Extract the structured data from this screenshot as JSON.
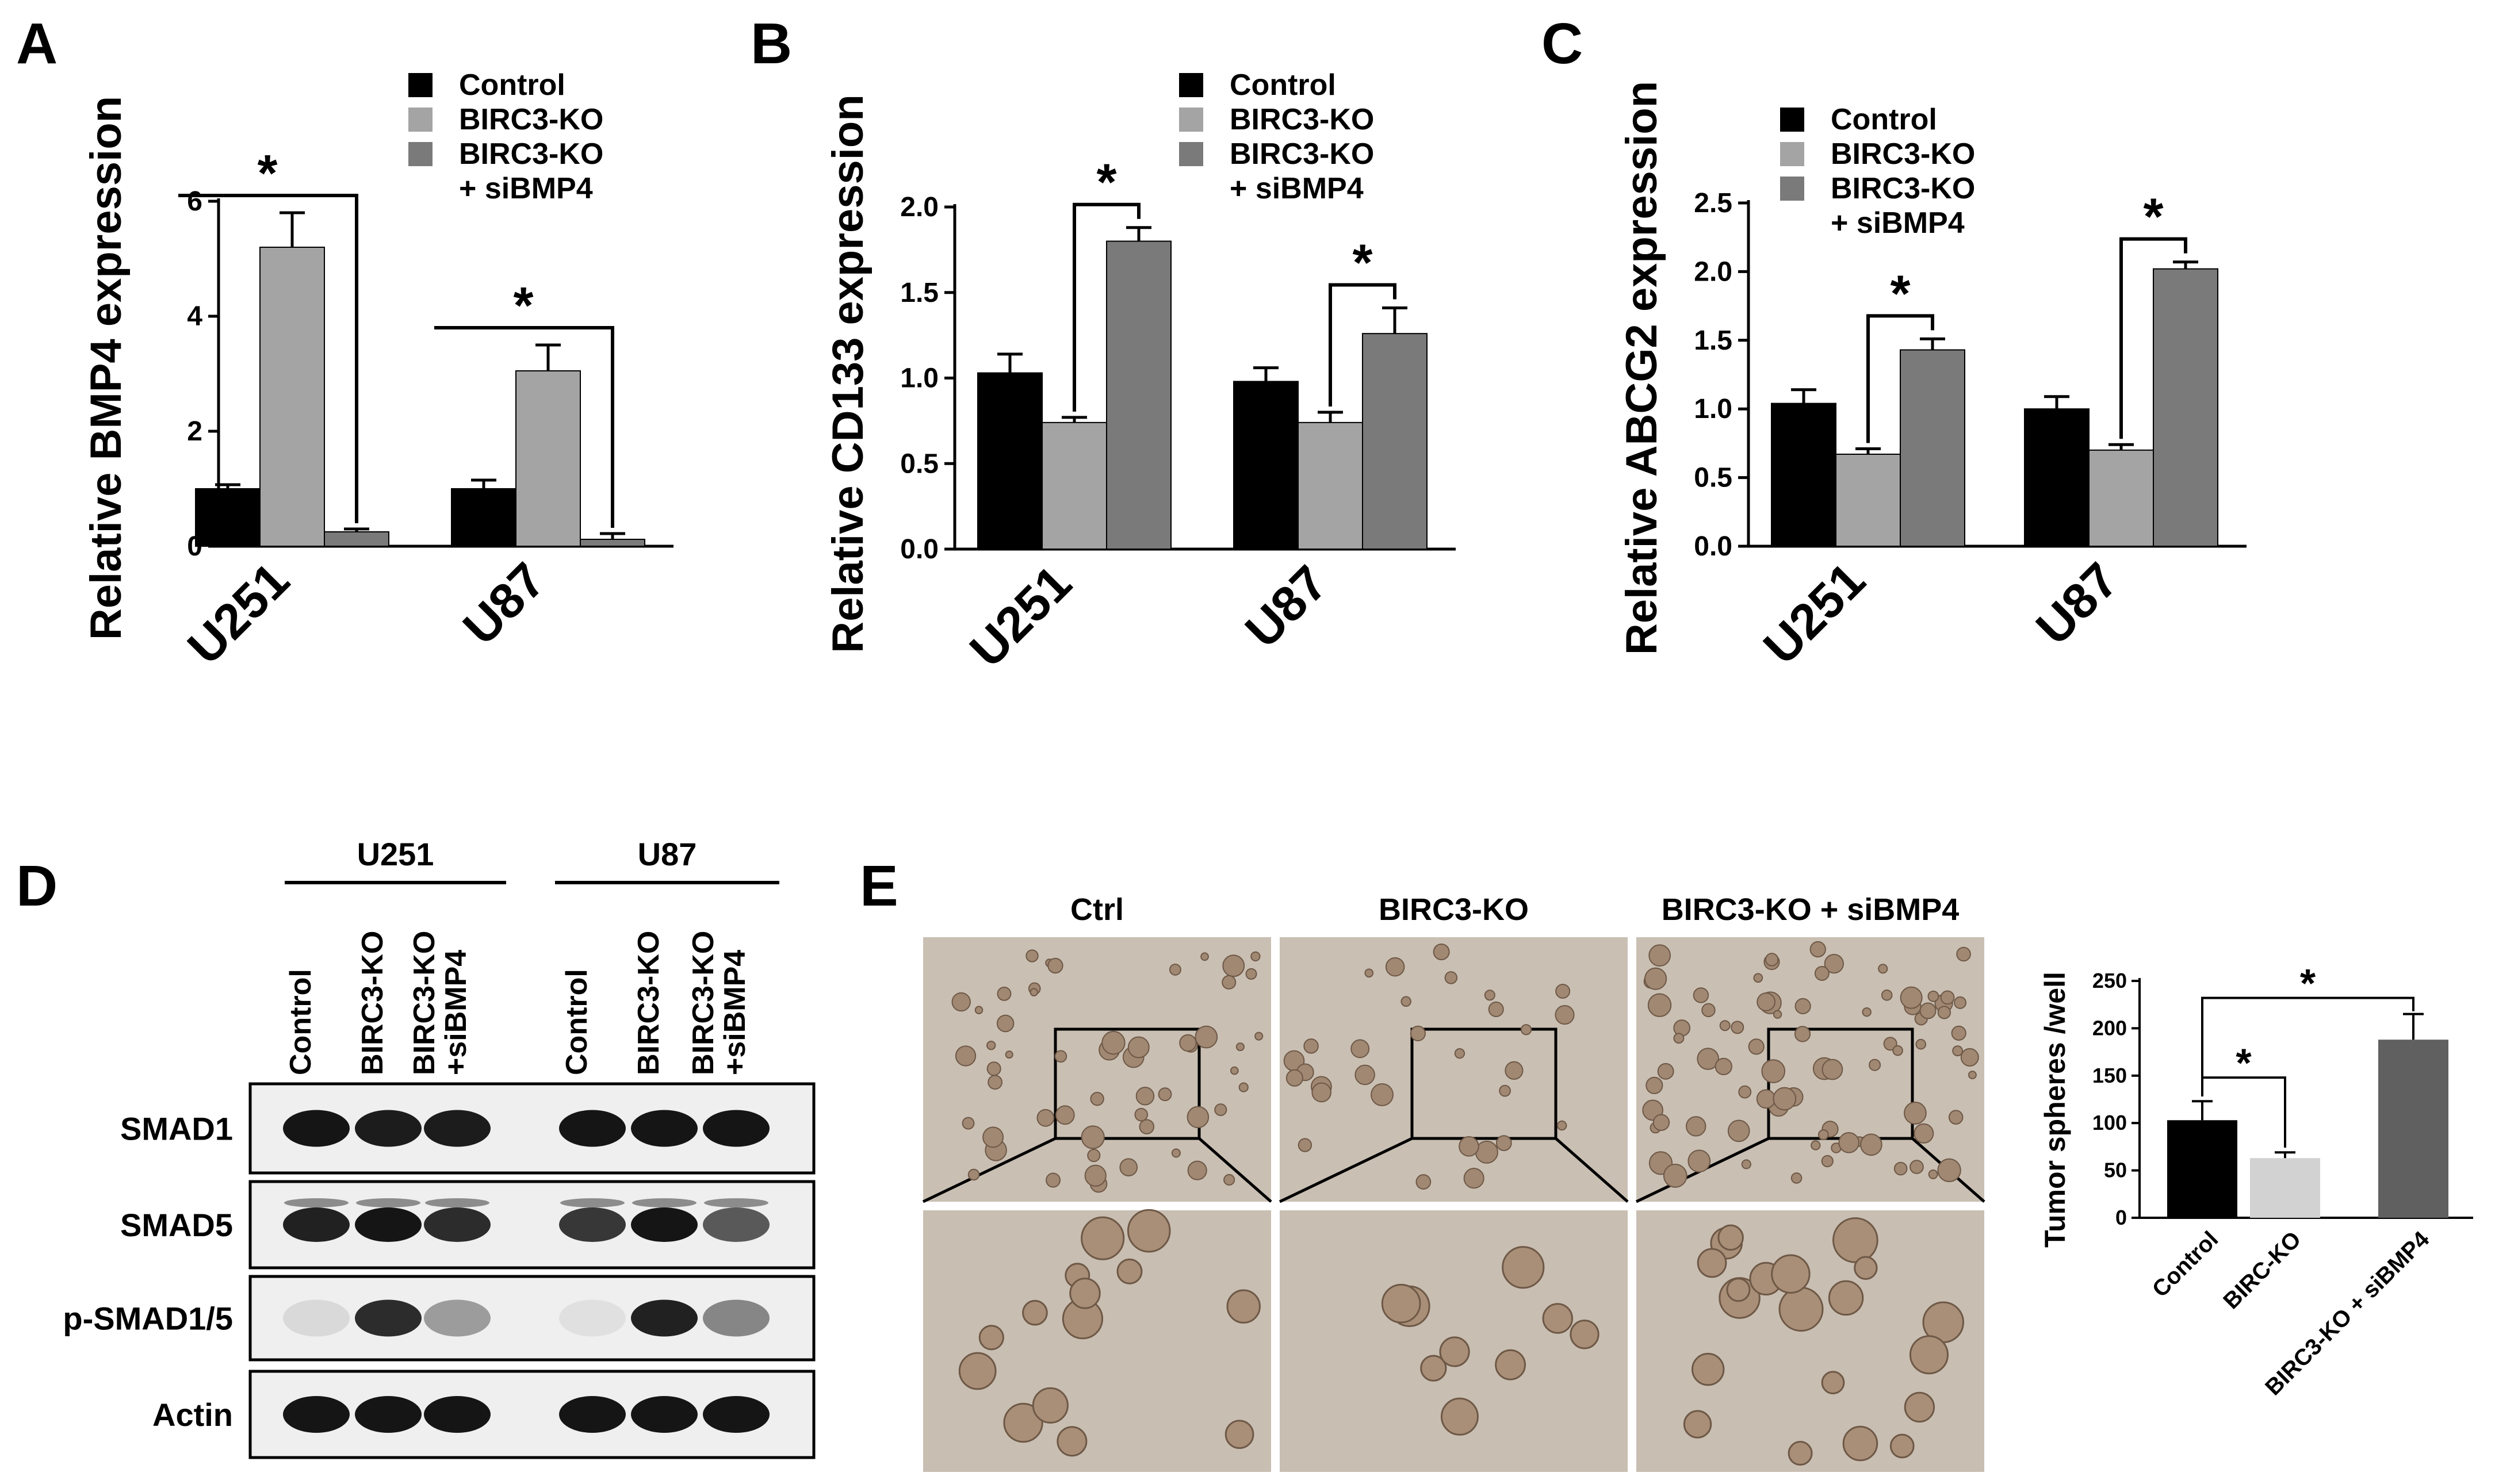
{
  "panels": {
    "A": "A",
    "B": "B",
    "C": "C",
    "D": "D",
    "E": "E"
  },
  "colors": {
    "control": "#000000",
    "birc3_ko": "#a4a4a4",
    "sibmp4": "#7a7a7a",
    "ko_light": "#d2d2d2",
    "ko_dark": "#606060"
  },
  "chart_data": [
    {
      "id": "A",
      "type": "bar",
      "ylabel": "Relative BMP4 expression",
      "categories": [
        "U251",
        "U87"
      ],
      "ylim": [
        0,
        6
      ],
      "yticks": [
        "0",
        "2",
        "4",
        "6"
      ],
      "legend": [
        "Control",
        "BIRC3-KO",
        "BIRC3-KO",
        "+ siBMP4"
      ],
      "series": [
        {
          "name": "Control",
          "values": [
            1.0,
            1.0
          ],
          "errors": [
            0.07,
            0.15
          ]
        },
        {
          "name": "BIRC3-KO",
          "values": [
            5.2,
            3.05
          ],
          "errors": [
            0.6,
            0.45
          ]
        },
        {
          "name": "BIRC3-KO + siBMP4",
          "values": [
            0.25,
            0.12
          ],
          "errors": [
            0.05,
            0.1
          ]
        }
      ],
      "significance": [
        "*",
        "*"
      ]
    },
    {
      "id": "B",
      "type": "bar",
      "ylabel": "Relative CD133 expression",
      "categories": [
        "U251",
        "U87"
      ],
      "ylim": [
        0,
        2.0
      ],
      "yticks": [
        "0.0",
        "0.5",
        "1.0",
        "1.5",
        "2.0"
      ],
      "legend": [
        "Control",
        "BIRC3-KO",
        "BIRC3-KO",
        "+ siBMP4"
      ],
      "series": [
        {
          "name": "Control",
          "values": [
            1.03,
            0.98
          ],
          "errors": [
            0.11,
            0.08
          ]
        },
        {
          "name": "BIRC3-KO",
          "values": [
            0.74,
            0.74
          ],
          "errors": [
            0.03,
            0.06
          ]
        },
        {
          "name": "BIRC3-KO + siBMP4",
          "values": [
            1.8,
            1.26
          ],
          "errors": [
            0.08,
            0.15
          ]
        }
      ],
      "significance": [
        "*",
        "*"
      ]
    },
    {
      "id": "C",
      "type": "bar",
      "ylabel": "Relative ABCG2 expression",
      "categories": [
        "U251",
        "U87"
      ],
      "ylim": [
        0,
        2.5
      ],
      "yticks": [
        "0.0",
        "0.5",
        "1.0",
        "1.5",
        "2.0",
        "2.5"
      ],
      "legend": [
        "Control",
        "BIRC3-KO",
        "BIRC3-KO",
        "+ siBMP4"
      ],
      "series": [
        {
          "name": "Control",
          "values": [
            1.04,
            1.0
          ],
          "errors": [
            0.1,
            0.09
          ]
        },
        {
          "name": "BIRC3-KO",
          "values": [
            0.67,
            0.7
          ],
          "errors": [
            0.04,
            0.04
          ]
        },
        {
          "name": "BIRC3-KO + siBMP4",
          "values": [
            1.43,
            2.02
          ],
          "errors": [
            0.08,
            0.05
          ]
        }
      ],
      "significance": [
        "*",
        "*"
      ]
    },
    {
      "id": "E",
      "type": "bar",
      "ylabel": "Tumor spheres /well",
      "categories": [
        "Control",
        "BIRC-KO",
        "BIRC3-KO + siBMP4"
      ],
      "ylim": [
        0,
        250
      ],
      "yticks": [
        "0",
        "50",
        "100",
        "150",
        "200",
        "250"
      ],
      "values": [
        103,
        63,
        188
      ],
      "errors": [
        20,
        6,
        27
      ],
      "significance": [
        "*",
        "*"
      ]
    }
  ],
  "blot": {
    "groups": [
      "U251",
      "U87"
    ],
    "lanes": [
      [
        "Control"
      ],
      [
        "BIRC3-KO"
      ],
      [
        "BIRC3-KO",
        "+siBMP4"
      ],
      [
        "Control"
      ],
      [
        "BIRC3-KO"
      ],
      [
        "BIRC3-KO",
        "+siBMP4"
      ]
    ],
    "rows": [
      "SMAD1",
      "SMAD5",
      "p-SMAD1/5",
      "Actin"
    ],
    "band_intensity": {
      "SMAD1": [
        0.95,
        0.92,
        0.92,
        0.95,
        0.95,
        0.95
      ],
      "SMAD5": [
        0.9,
        0.95,
        0.85,
        0.8,
        0.95,
        0.65
      ],
      "p-SMAD1/5": [
        0.08,
        0.85,
        0.35,
        0.05,
        0.9,
        0.45
      ],
      "Actin": [
        0.95,
        0.95,
        0.95,
        0.95,
        0.95,
        0.95
      ]
    }
  },
  "micro": {
    "labels": [
      "Ctrl",
      "BIRC3-KO",
      "BIRC3-KO + siBMP4"
    ]
  }
}
